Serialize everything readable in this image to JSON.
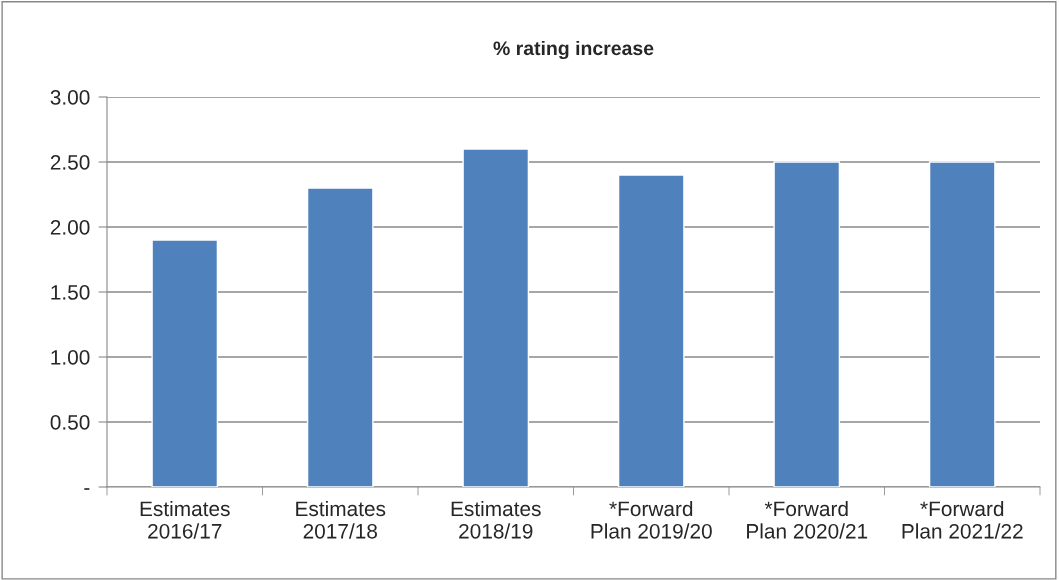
{
  "chart_data": {
    "type": "bar",
    "title": "% rating increase",
    "categories": [
      "Estimates\n2016/17",
      "Estimates\n2017/18",
      "Estimates\n2018/19",
      "*Forward\nPlan 2019/20",
      "*Forward\nPlan 2020/21",
      "*Forward\nPlan 2021/22"
    ],
    "values": [
      1.9,
      2.3,
      2.6,
      2.4,
      2.5,
      2.5
    ],
    "color": "#4f81bd",
    "ylim": [
      0,
      3
    ],
    "yticks": [
      {
        "value": 0,
        "label": "-"
      },
      {
        "value": 0.5,
        "label": "0.50"
      },
      {
        "value": 1,
        "label": "1.00"
      },
      {
        "value": 1.5,
        "label": "1.50"
      },
      {
        "value": 2,
        "label": "2.00"
      },
      {
        "value": 2.5,
        "label": "2.50"
      },
      {
        "value": 3,
        "label": "3.00"
      }
    ],
    "grid": "y"
  }
}
